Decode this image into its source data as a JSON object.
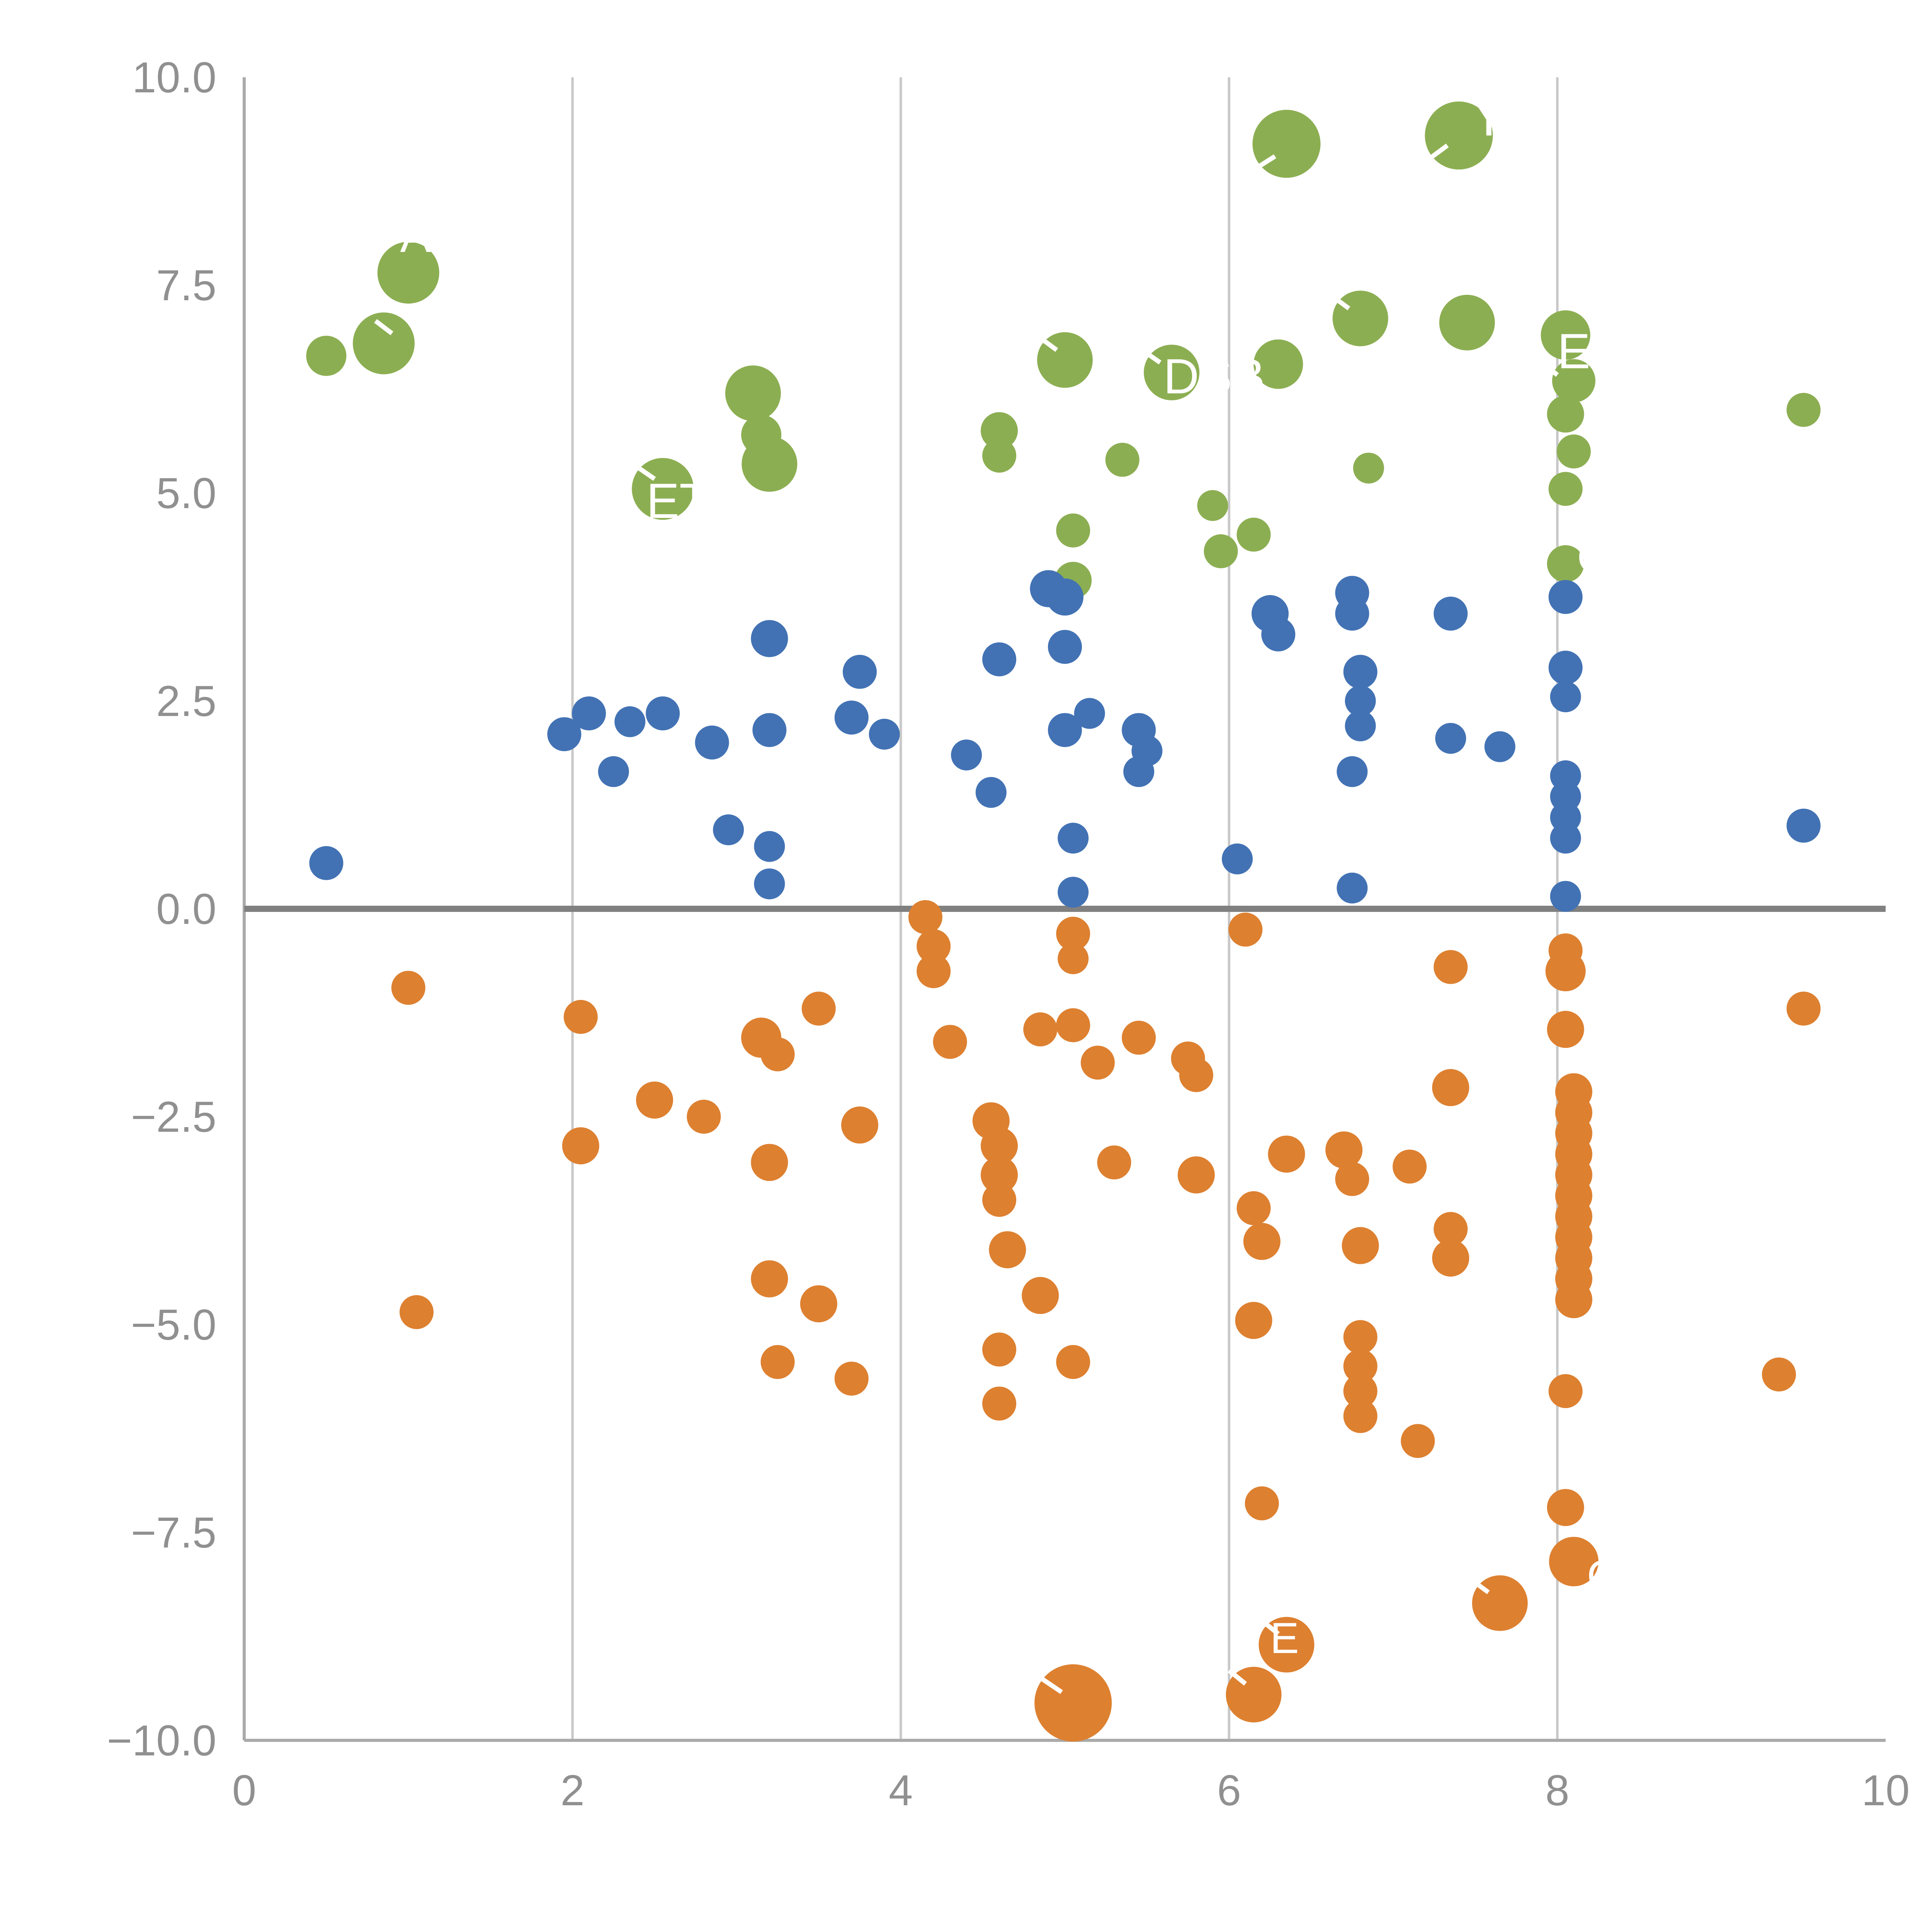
{
  "chart_data": {
    "type": "scatter",
    "title": "",
    "xlabel": "",
    "ylabel": "",
    "xlim": [
      0,
      10
    ],
    "ylim": [
      -10,
      10
    ],
    "x_ticks": [
      0,
      2,
      4,
      6,
      8,
      10
    ],
    "x_tick_labels": [
      "0",
      "2",
      "4",
      "6",
      "8",
      "10"
    ],
    "y_ticks": [
      10,
      7.5,
      5,
      2.5,
      0,
      -2.5,
      -5,
      -7.5,
      -10
    ],
    "y_tick_labels": [
      "10.0",
      "7.5",
      "5.0",
      "2.5",
      "0.0",
      "−2.5",
      "−5.0",
      "−7.5",
      "−10.0"
    ],
    "x_gridlines": [
      2,
      4,
      6,
      8
    ],
    "zero_line_y": 0,
    "grid_on": true,
    "legend": "none",
    "colors": {
      "green": "#8CAE52",
      "blue": "#4272B4",
      "orange": "#DD8030",
      "grid": "#C8C8C8",
      "spine": "#AAAAAA",
      "zero_line": "#808080",
      "tick_text": "#909090",
      "bubble_label": "#FFFFFF"
    },
    "series": [
      {
        "name": "green-cluster",
        "color_key": "green",
        "points": [
          [
            0.5,
            6.65,
            13
          ],
          [
            0.85,
            6.8,
            20
          ],
          [
            1.0,
            7.65,
            20
          ],
          [
            2.55,
            5.05,
            20
          ],
          [
            3.1,
            6.2,
            18
          ],
          [
            3.15,
            5.7,
            13
          ],
          [
            3.2,
            5.35,
            18
          ],
          [
            4.6,
            5.75,
            12
          ],
          [
            4.6,
            5.45,
            11
          ],
          [
            5.0,
            6.6,
            18
          ],
          [
            5.05,
            4.55,
            11
          ],
          [
            5.05,
            3.95,
            12
          ],
          [
            5.35,
            5.4,
            11
          ],
          [
            5.65,
            6.45,
            18
          ],
          [
            5.9,
            4.85,
            10
          ],
          [
            5.95,
            4.3,
            11
          ],
          [
            6.15,
            4.5,
            11
          ],
          [
            6.3,
            6.55,
            16
          ],
          [
            6.35,
            9.2,
            22
          ],
          [
            6.8,
            7.1,
            18
          ],
          [
            6.85,
            5.3,
            10
          ],
          [
            7.4,
            9.3,
            22
          ],
          [
            7.45,
            7.05,
            18
          ],
          [
            8.05,
            6.9,
            16
          ],
          [
            8.1,
            6.35,
            14
          ],
          [
            8.05,
            5.95,
            12
          ],
          [
            8.1,
            5.5,
            11
          ],
          [
            8.05,
            5.05,
            11
          ],
          [
            8.05,
            4.15,
            12
          ],
          [
            9.5,
            6.0,
            11
          ]
        ]
      },
      {
        "name": "blue-cluster",
        "color_key": "blue",
        "points": [
          [
            0.5,
            0.55,
            11
          ],
          [
            1.95,
            2.1,
            11
          ],
          [
            2.1,
            2.35,
            11
          ],
          [
            2.25,
            1.65,
            10
          ],
          [
            2.35,
            2.25,
            10
          ],
          [
            2.55,
            2.35,
            11
          ],
          [
            2.85,
            2.0,
            11
          ],
          [
            2.95,
            0.95,
            10
          ],
          [
            3.2,
            3.25,
            12
          ],
          [
            3.2,
            2.15,
            11
          ],
          [
            3.2,
            0.75,
            10
          ],
          [
            3.2,
            0.3,
            10
          ],
          [
            3.7,
            2.3,
            11
          ],
          [
            3.75,
            2.85,
            11
          ],
          [
            3.9,
            2.1,
            10
          ],
          [
            4.4,
            1.85,
            10
          ],
          [
            4.55,
            1.4,
            10
          ],
          [
            4.6,
            3.0,
            11
          ],
          [
            4.9,
            3.85,
            12
          ],
          [
            5.0,
            3.75,
            12
          ],
          [
            5.0,
            3.15,
            11
          ],
          [
            5.0,
            2.15,
            11
          ],
          [
            5.15,
            2.35,
            10
          ],
          [
            5.05,
            0.85,
            10
          ],
          [
            5.05,
            0.2,
            10
          ],
          [
            5.45,
            2.15,
            11
          ],
          [
            5.5,
            1.9,
            10
          ],
          [
            5.45,
            1.65,
            10
          ],
          [
            6.05,
            0.6,
            10
          ],
          [
            6.25,
            3.55,
            12
          ],
          [
            6.3,
            3.3,
            11
          ],
          [
            6.75,
            3.8,
            11
          ],
          [
            6.75,
            3.55,
            11
          ],
          [
            6.8,
            2.85,
            11
          ],
          [
            6.8,
            2.5,
            10
          ],
          [
            6.8,
            2.2,
            10
          ],
          [
            6.75,
            1.65,
            10
          ],
          [
            6.75,
            0.25,
            10
          ],
          [
            7.35,
            3.55,
            11
          ],
          [
            7.35,
            2.05,
            10
          ],
          [
            7.65,
            1.95,
            10
          ],
          [
            8.05,
            3.75,
            11
          ],
          [
            8.05,
            2.9,
            11
          ],
          [
            8.05,
            2.55,
            10
          ],
          [
            8.05,
            1.6,
            10
          ],
          [
            8.05,
            1.35,
            10
          ],
          [
            8.05,
            1.1,
            10
          ],
          [
            8.05,
            0.85,
            10
          ],
          [
            8.05,
            0.15,
            10
          ],
          [
            9.5,
            1.0,
            11
          ]
        ]
      },
      {
        "name": "orange-cluster",
        "color_key": "orange",
        "points": [
          [
            1.0,
            -0.95,
            11
          ],
          [
            1.05,
            -4.85,
            11
          ],
          [
            2.05,
            -1.3,
            11
          ],
          [
            2.05,
            -2.85,
            12
          ],
          [
            2.5,
            -2.3,
            12
          ],
          [
            2.8,
            -2.5,
            11
          ],
          [
            3.15,
            -1.55,
            13
          ],
          [
            3.25,
            -1.75,
            11
          ],
          [
            3.2,
            -3.05,
            12
          ],
          [
            3.2,
            -4.45,
            12
          ],
          [
            3.25,
            -5.45,
            11
          ],
          [
            3.5,
            -1.2,
            11
          ],
          [
            3.5,
            -4.75,
            12
          ],
          [
            3.75,
            -2.6,
            12
          ],
          [
            3.7,
            -5.65,
            11
          ],
          [
            4.15,
            -0.1,
            11
          ],
          [
            4.2,
            -0.45,
            11
          ],
          [
            4.2,
            -0.75,
            11
          ],
          [
            4.3,
            -1.6,
            11
          ],
          [
            4.55,
            -2.55,
            12
          ],
          [
            4.6,
            -2.85,
            12
          ],
          [
            4.6,
            -3.2,
            12
          ],
          [
            4.6,
            -3.5,
            11
          ],
          [
            4.65,
            -4.1,
            12
          ],
          [
            4.6,
            -5.3,
            11
          ],
          [
            4.6,
            -5.95,
            11
          ],
          [
            4.85,
            -4.65,
            12
          ],
          [
            4.85,
            -1.45,
            11
          ],
          [
            5.05,
            -1.4,
            11
          ],
          [
            5.05,
            -0.3,
            11
          ],
          [
            5.05,
            -0.6,
            10
          ],
          [
            5.05,
            -5.45,
            11
          ],
          [
            5.05,
            -9.55,
            25
          ],
          [
            5.2,
            -1.85,
            11
          ],
          [
            5.3,
            -3.05,
            11
          ],
          [
            5.45,
            -1.55,
            11
          ],
          [
            5.75,
            -1.8,
            11
          ],
          [
            5.8,
            -2.0,
            11
          ],
          [
            5.8,
            -3.2,
            12
          ],
          [
            6.1,
            -0.25,
            11
          ],
          [
            6.15,
            -3.6,
            11
          ],
          [
            6.2,
            -4.0,
            12
          ],
          [
            6.15,
            -4.95,
            12
          ],
          [
            6.2,
            -7.15,
            11
          ],
          [
            6.15,
            -9.45,
            18
          ],
          [
            6.35,
            -2.95,
            12
          ],
          [
            6.35,
            -8.85,
            18
          ],
          [
            6.7,
            -2.9,
            12
          ],
          [
            6.75,
            -3.25,
            11
          ],
          [
            6.8,
            -4.05,
            12
          ],
          [
            6.8,
            -5.15,
            11
          ],
          [
            6.8,
            -5.5,
            11
          ],
          [
            6.8,
            -5.8,
            11
          ],
          [
            6.8,
            -6.1,
            11
          ],
          [
            7.1,
            -3.1,
            11
          ],
          [
            7.15,
            -6.4,
            11
          ],
          [
            7.35,
            -0.7,
            11
          ],
          [
            7.35,
            -2.15,
            12
          ],
          [
            7.35,
            -3.85,
            11
          ],
          [
            7.35,
            -4.2,
            12
          ],
          [
            7.65,
            -8.35,
            18
          ],
          [
            8.05,
            -0.5,
            11
          ],
          [
            8.05,
            -0.75,
            13
          ],
          [
            8.05,
            -1.45,
            12
          ],
          [
            8.1,
            -2.2,
            12
          ],
          [
            8.1,
            -2.45,
            12
          ],
          [
            8.1,
            -2.7,
            12
          ],
          [
            8.1,
            -2.95,
            12
          ],
          [
            8.1,
            -3.2,
            12
          ],
          [
            8.1,
            -3.45,
            12
          ],
          [
            8.1,
            -3.7,
            12
          ],
          [
            8.1,
            -3.95,
            12
          ],
          [
            8.1,
            -4.2,
            12
          ],
          [
            8.1,
            -4.45,
            12
          ],
          [
            8.1,
            -4.7,
            12
          ],
          [
            8.05,
            -5.8,
            11
          ],
          [
            8.05,
            -7.2,
            12
          ],
          [
            8.1,
            -7.85,
            16
          ],
          [
            9.35,
            -5.6,
            11
          ],
          [
            9.5,
            -1.2,
            11
          ]
        ]
      }
    ],
    "bubble_labels": [
      {
        "text": "Y",
        "x": 7.47,
        "y": 9.3,
        "size": 36
      },
      {
        "text": "ENS",
        "x": 8.0,
        "y": 6.5,
        "size": 32
      },
      {
        "text": "DSB",
        "x": 5.6,
        "y": 6.2,
        "size": 32
      },
      {
        "text": "ET",
        "x": 2.45,
        "y": 4.7,
        "size": 32
      },
      {
        "text": "A",
        "x": 0.95,
        "y": 7.9,
        "size": 30
      },
      {
        "text": "G",
        "x": 8.12,
        "y": 4.05,
        "size": 28
      },
      {
        "text": "C",
        "x": 8.18,
        "y": -8.2,
        "size": 28
      },
      {
        "text": "E",
        "x": 6.25,
        "y": -8.95,
        "size": 28
      }
    ],
    "leader_lines": [
      {
        "x1": 6.28,
        "y1": 9.05,
        "x2": 6.16,
        "y2": 8.9
      },
      {
        "x1": 4.95,
        "y1": 6.72,
        "x2": 4.84,
        "y2": 6.88
      },
      {
        "x1": 6.73,
        "y1": 7.22,
        "x2": 6.62,
        "y2": 7.38
      },
      {
        "x1": 5.58,
        "y1": 6.57,
        "x2": 5.47,
        "y2": 6.72
      },
      {
        "x1": 7.33,
        "y1": 9.18,
        "x2": 7.22,
        "y2": 9.02
      },
      {
        "x1": 2.5,
        "y1": 5.17,
        "x2": 2.39,
        "y2": 5.32
      },
      {
        "x1": 0.9,
        "y1": 6.92,
        "x2": 0.8,
        "y2": 7.07
      },
      {
        "x1": 8.0,
        "y1": 6.42,
        "x2": 7.9,
        "y2": 6.58
      },
      {
        "x1": 4.98,
        "y1": -9.42,
        "x2": 4.86,
        "y2": -9.26
      },
      {
        "x1": 7.58,
        "y1": -8.22,
        "x2": 7.47,
        "y2": -8.06
      },
      {
        "x1": 6.3,
        "y1": -8.72,
        "x2": 6.2,
        "y2": -8.56
      },
      {
        "x1": 6.1,
        "y1": -9.32,
        "x2": 6.0,
        "y2": -9.16
      }
    ]
  }
}
